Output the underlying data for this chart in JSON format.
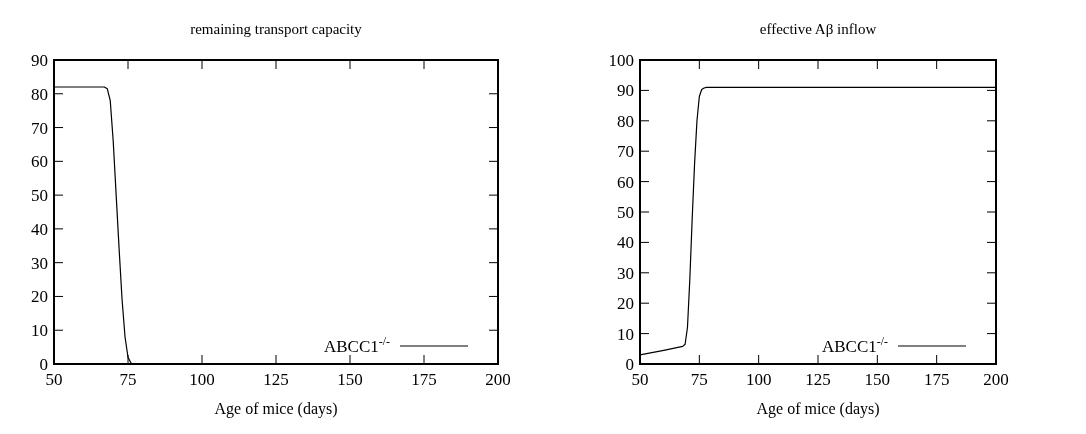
{
  "chart_data": [
    {
      "type": "line",
      "title": "remaining transport capacity",
      "xlabel": "Age of mice (days)",
      "xlim": [
        50,
        200
      ],
      "xticks": [
        50,
        75,
        100,
        125,
        150,
        175,
        200
      ],
      "ylim": [
        0,
        90
      ],
      "yticks": [
        0,
        10,
        20,
        30,
        40,
        50,
        60,
        70,
        80,
        90
      ],
      "grid": false,
      "legend": "bottom right",
      "series": [
        {
          "name": "ABCC1$^{-/-}$",
          "color": "#000000",
          "x": [
            50,
            60,
            67,
            68,
            69,
            70,
            71,
            72,
            73,
            74,
            75,
            76,
            77,
            80,
            100,
            150,
            190
          ],
          "values": [
            82,
            82,
            82,
            81.5,
            78,
            66,
            50,
            34,
            19,
            8,
            2,
            0.3,
            0,
            0,
            0,
            0,
            0
          ]
        }
      ]
    },
    {
      "type": "line",
      "title": "effective Aβ inflow",
      "xlabel": "Age of mice (days)",
      "xlim": [
        50,
        200
      ],
      "xticks": [
        50,
        75,
        100,
        125,
        150,
        175,
        200
      ],
      "ylim": [
        0,
        100
      ],
      "yticks": [
        0,
        10,
        20,
        30,
        40,
        50,
        60,
        70,
        80,
        90,
        100
      ],
      "grid": false,
      "legend": "bottom right",
      "series": [
        {
          "name": "ABCC1$^{-/-}$",
          "color": "#000000",
          "x": [
            50,
            60,
            68,
            69,
            70,
            71,
            72,
            73,
            74,
            75,
            76,
            77,
            78,
            80,
            100,
            150,
            200
          ],
          "values": [
            3,
            4.5,
            5.8,
            6.5,
            12,
            28,
            48,
            66,
            80,
            88,
            90.3,
            90.8,
            91,
            91,
            91,
            91,
            91
          ]
        }
      ]
    }
  ]
}
